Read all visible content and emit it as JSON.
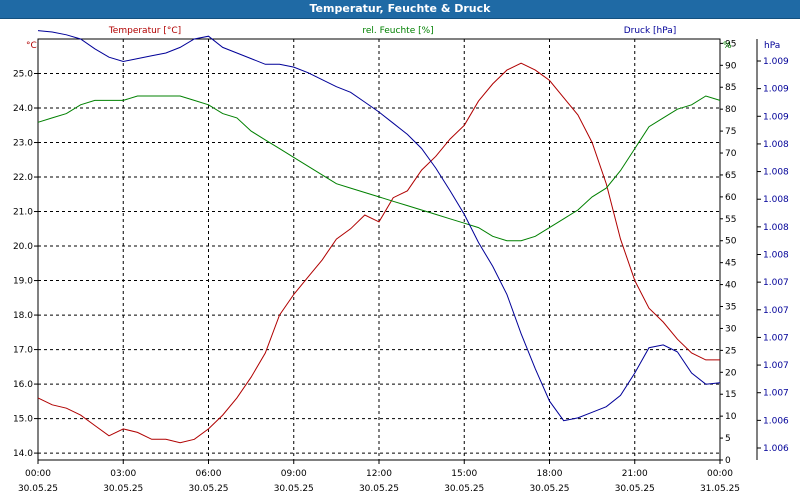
{
  "window": {
    "title": "Temperatur, Feuchte & Druck"
  },
  "colors": {
    "temperature": "#b00000",
    "humidity": "#008000",
    "pressure": "#000098",
    "grid": "#000000"
  },
  "chart_data": {
    "type": "line",
    "title": "Temperatur, Feuchte & Druck",
    "x": [
      "00:00",
      "00:30",
      "01:00",
      "01:30",
      "02:00",
      "02:30",
      "03:00",
      "03:30",
      "04:00",
      "04:30",
      "05:00",
      "05:30",
      "06:00",
      "06:30",
      "07:00",
      "07:30",
      "08:00",
      "08:30",
      "09:00",
      "09:30",
      "10:00",
      "10:30",
      "11:00",
      "11:30",
      "12:00",
      "12:30",
      "13:00",
      "13:30",
      "14:00",
      "14:30",
      "15:00",
      "15:30",
      "16:00",
      "16:30",
      "17:00",
      "17:30",
      "18:00",
      "18:30",
      "19:00",
      "19:30",
      "20:00",
      "20:30",
      "21:00",
      "21:30",
      "22:00",
      "22:30",
      "23:00",
      "23:30",
      "00:00"
    ],
    "x_ticks": [
      {
        "time": "00:00",
        "date": "30.05.25"
      },
      {
        "time": "03:00",
        "date": "30.05.25"
      },
      {
        "time": "06:00",
        "date": "30.05.25"
      },
      {
        "time": "09:00",
        "date": "30.05.25"
      },
      {
        "time": "12:00",
        "date": "30.05.25"
      },
      {
        "time": "15:00",
        "date": "30.05.25"
      },
      {
        "time": "18:00",
        "date": "30.05.25"
      },
      {
        "time": "21:00",
        "date": "30.05.25"
      },
      {
        "time": "00:00",
        "date": "31.05.25"
      }
    ],
    "axes": {
      "temperature": {
        "label": "Temperatur [°C]",
        "unit": "°C",
        "ylim": [
          13.8,
          26.0
        ],
        "ticks": [
          "25.0",
          "24.0",
          "23.0",
          "22.0",
          "21.0",
          "20.0",
          "19.0",
          "18.0",
          "17.0",
          "16.0",
          "15.0",
          "14.0"
        ]
      },
      "humidity": {
        "label": "rel. Feuchte [%]",
        "unit": "%",
        "ylim": [
          0,
          96
        ],
        "ticks": [
          "95",
          "90",
          "85",
          "80",
          "75",
          "70",
          "65",
          "60",
          "55",
          "50",
          "45",
          "40",
          "35",
          "30",
          "25",
          "20",
          "15",
          "10",
          "5",
          "0"
        ]
      },
      "pressure": {
        "label": "Druck [hPa]",
        "unit": "hPa",
        "ylim": [
          1.006,
          1.009
        ],
        "ticks": [
          "1.009",
          "1.009",
          "1.009",
          "1.008",
          "1.008",
          "1.008",
          "1.008",
          "1.008",
          "1.007",
          "1.007",
          "1.007",
          "1.007",
          "1.007",
          "1.006",
          "1.006"
        ]
      }
    },
    "series": [
      {
        "name": "Temperatur [°C]",
        "axis": "temperature",
        "values": [
          15.6,
          15.4,
          15.3,
          15.1,
          14.8,
          14.5,
          14.7,
          14.6,
          14.4,
          14.4,
          14.3,
          14.4,
          14.7,
          15.1,
          15.6,
          16.2,
          16.9,
          18.0,
          18.6,
          19.1,
          19.6,
          20.2,
          20.5,
          20.9,
          20.7,
          21.4,
          21.6,
          22.2,
          22.6,
          23.1,
          23.5,
          24.2,
          24.7,
          25.1,
          25.3,
          25.1,
          24.8,
          24.3,
          23.8,
          23.0,
          21.8,
          20.2,
          19.0,
          18.2,
          17.8,
          17.3,
          16.9,
          16.7,
          16.7
        ]
      },
      {
        "name": "rel. Feuchte [%]",
        "axis": "humidity",
        "values": [
          77,
          78,
          79,
          81,
          82,
          82,
          82,
          83,
          83,
          83,
          83,
          82,
          81,
          79,
          78,
          75,
          73,
          71,
          69,
          67,
          65,
          63,
          62,
          61,
          60,
          59,
          58,
          57,
          56,
          55,
          54,
          53,
          51,
          50,
          50,
          51,
          53,
          55,
          57,
          60,
          62,
          66,
          71,
          76,
          78,
          80,
          81,
          83,
          82
        ]
      },
      {
        "name": "Druck [hPa]",
        "axis": "pressure",
        "values": [
          1.00906,
          1.00905,
          1.00903,
          1.009,
          1.00893,
          1.00887,
          1.00884,
          1.00886,
          1.00888,
          1.0089,
          1.00894,
          1.009,
          1.00902,
          1.00894,
          1.0089,
          1.00886,
          1.00882,
          1.00882,
          1.0088,
          1.00876,
          1.00871,
          1.00866,
          1.00862,
          1.00855,
          1.00848,
          1.0084,
          1.00832,
          1.00822,
          1.00808,
          1.00792,
          1.00775,
          1.00755,
          1.00738,
          1.00718,
          1.0069,
          1.00665,
          1.00642,
          1.00628,
          1.0063,
          1.00634,
          1.00638,
          1.00646,
          1.00662,
          1.0068,
          1.00682,
          1.00677,
          1.00662,
          1.00654,
          1.00655
        ]
      }
    ]
  }
}
